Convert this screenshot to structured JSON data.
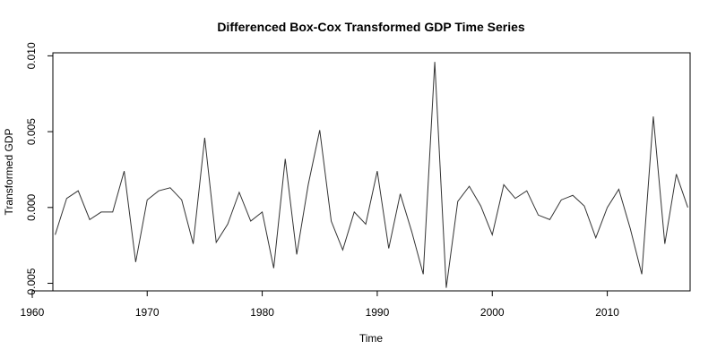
{
  "chart_data": {
    "type": "line",
    "title": "Differenced Box-Cox Transformed GDP Time Series",
    "xlabel": "Time",
    "ylabel": "Transformed GDP",
    "xlim": [
      1961.8,
      2017.2
    ],
    "ylim": [
      -0.0055,
      0.0102
    ],
    "xticks": [
      1960,
      1970,
      1980,
      1990,
      2000,
      2010
    ],
    "xtick_labels": [
      "1960",
      "1970",
      "1980",
      "1990",
      "2000",
      "2010"
    ],
    "yticks": [
      -0.005,
      0.0,
      0.005,
      0.01
    ],
    "ytick_labels": [
      "-0.005",
      "0.000",
      "0.005",
      "0.010"
    ],
    "grid": false,
    "line_color": "#333333",
    "series": [
      {
        "x": [
          1962,
          1963,
          1964,
          1965,
          1966,
          1967,
          1968,
          1969,
          1970,
          1971,
          1972,
          1973,
          1974,
          1975,
          1976,
          1977,
          1978,
          1979,
          1980,
          1981,
          1982,
          1983,
          1984,
          1985,
          1986,
          1987,
          1988,
          1989,
          1990,
          1991,
          1992,
          1993,
          1994,
          1995,
          1996,
          1997,
          1998,
          1999,
          2000,
          2001,
          2002,
          2003,
          2004,
          2005,
          2006,
          2007,
          2008,
          2009,
          2010,
          2011,
          2012,
          2013,
          2014,
          2015,
          2016,
          2017
        ],
        "values": [
          -0.0018,
          0.0006,
          0.0011,
          -0.0008,
          -0.0003,
          -0.0003,
          0.0024,
          -0.0036,
          0.0005,
          0.0011,
          0.0013,
          0.0005,
          -0.0024,
          0.0046,
          -0.0023,
          -0.0011,
          0.001,
          -0.0009,
          -0.0003,
          -0.004,
          0.0032,
          -0.0031,
          0.0015,
          0.0051,
          -0.0009,
          -0.0028,
          -0.0003,
          -0.0011,
          0.0024,
          -0.0027,
          0.0009,
          -0.0016,
          -0.0044,
          0.0096,
          -0.0053,
          0.0004,
          0.0014,
          0.0001,
          -0.0018,
          0.0015,
          0.0006,
          0.0011,
          -0.0005,
          -0.0008,
          0.0005,
          0.0008,
          0.0001,
          -0.002,
          0.0,
          0.0012,
          -0.0014,
          -0.0044,
          0.006,
          -0.0024,
          0.0022,
          0.0
        ]
      }
    ]
  }
}
